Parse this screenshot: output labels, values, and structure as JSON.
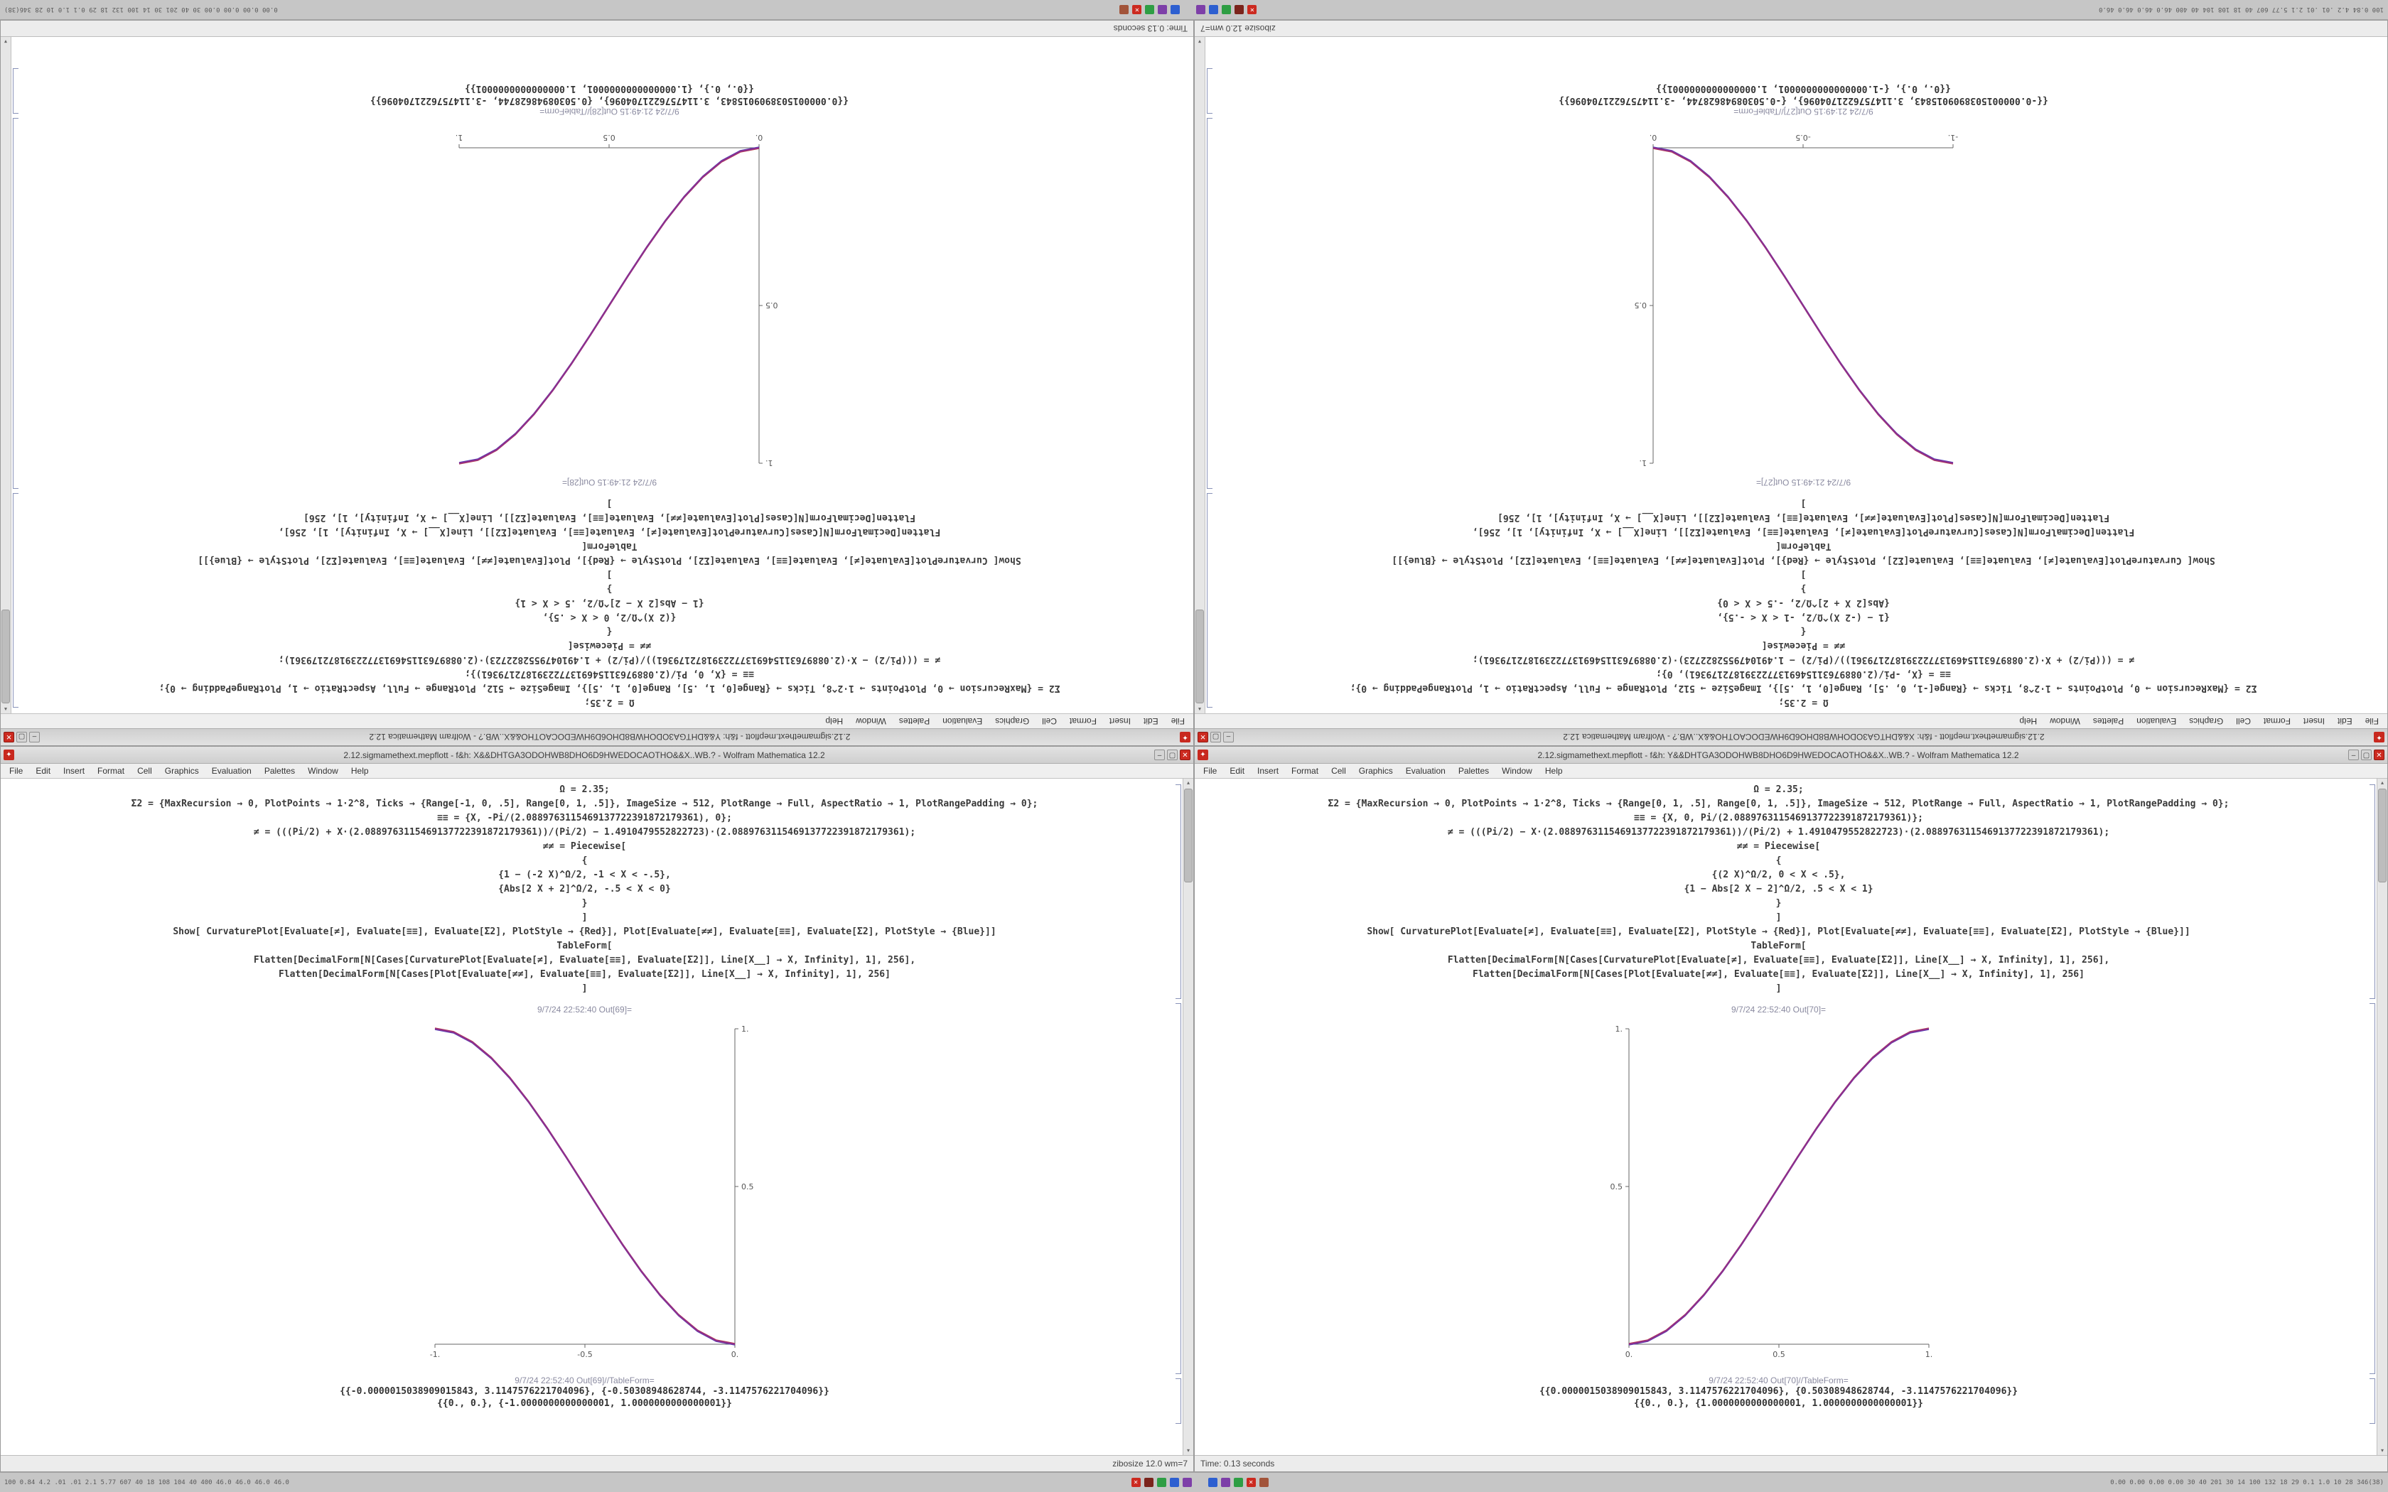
{
  "chrome": {
    "menu": [
      "File",
      "Edit",
      "Insert",
      "Format",
      "Cell",
      "Graphics",
      "Evaluation",
      "Palettes",
      "Window",
      "Help"
    ],
    "app_icon_glyph": "✦",
    "minimize_glyph": "–",
    "maximize_glyph": "▢",
    "close_glyph": "✕"
  },
  "taskbar": {
    "left_monitor": "100 0.84 4.2 .01 .01 2.1 5.77 607 40 18 108 104 40 400 46.0 46.0 46.0 46.0",
    "right_monitor": "0.00 0.00 0.00 0.00 30 40 201 30 14 100 132 18 29 0.1 1.0 10 28 346(38)",
    "icons": [
      {
        "name": "tray-icon-close-red",
        "color": "#cc2a20",
        "glyph": "✕"
      },
      {
        "name": "tray-icon-maroon",
        "color": "#7b241c",
        "glyph": ""
      },
      {
        "name": "tray-icon-green",
        "color": "#2e9e44",
        "glyph": ""
      },
      {
        "name": "tray-icon-blue",
        "color": "#2d5fd0",
        "glyph": ""
      },
      {
        "name": "tray-icon-purple",
        "color": "#7d3fa8",
        "glyph": ""
      },
      {
        "name": "tray-spacer",
        "color": "transparent",
        "glyph": ""
      },
      {
        "name": "tray-icon-blue-2",
        "color": "#2d5fd0",
        "glyph": ""
      },
      {
        "name": "tray-icon-purple-2",
        "color": "#7d3fa8",
        "glyph": ""
      },
      {
        "name": "tray-icon-green-2",
        "color": "#2e9e44",
        "glyph": ""
      },
      {
        "name": "tray-icon-red-2",
        "color": "#cc2a20",
        "glyph": "✕"
      },
      {
        "name": "tray-icon-brown",
        "color": "#a2543a",
        "glyph": ""
      }
    ]
  },
  "windows": {
    "br": {
      "title": "2.12.sigmamethext.mepflott - f&h: Y&&DHTGA3ODOHWB8DHO6D9HWEDOCAOTHO&&X..WB.? - Wolfram Mathematica 12.2",
      "status_left": "Time: 0.13 seconds",
      "status_right": "",
      "out_plot_label": "9/7/24 22:52:40 Out[70]=",
      "out_table_label": "9/7/24 22:52:40 Out[70]//TableForm=",
      "table_rows": [
        "{{0.0000015038909015843, 3.1147576221704096}, {0.50308948628744, -3.1147576221704096}}",
        "{{0., 0.}, {1.0000000000000001, 1.0000000000000001}}"
      ],
      "inputs": [
        "Ω = 2.35;",
        "Σ2 = {MaxRecursion → 0, PlotPoints → 1·2^8, Ticks → {Range[0, 1, .5], Range[0, 1, .5]}, ImageSize → 512, PlotRange → Full, AspectRatio → 1, PlotRangePadding → 0};",
        "≡≡ = {X, 0, Pi/(2.0889763115469137722391872179361)};",
        "≠ = (((Pi/2) − X·(2.0889763115469137722391872179361))/(Pi/2) + 1.4910479552822723)·(2.0889763115469137722391872179361);",
        "≠≠ = Piecewise[",
        "{",
        "{(2 X)^Ω/2, 0 < X < .5},",
        "{1 − Abs[2 X − 2]^Ω/2, .5 < X < 1}",
        "}",
        "]",
        "Show[ CurvaturePlot[Evaluate[≠], Evaluate[≡≡], Evaluate[Σ2], PlotStyle → {Red}], Plot[Evaluate[≠≠], Evaluate[≡≡], Evaluate[Σ2], PlotStyle → {Blue}]]",
        "TableForm[",
        "Flatten[DecimalForm[N[Cases[CurvaturePlot[Evaluate[≠], Evaluate[≡≡], Evaluate[Σ2]], Line[X__] → X, Infinity], 1], 256],",
        "Flatten[DecimalForm[N[Cases[Plot[Evaluate[≠≠], Evaluate[≡≡], Evaluate[Σ2]], Line[X__] → X, Infinity], 1], 256]",
        "]"
      ],
      "chart": {
        "type": "line",
        "x_range": [
          0,
          1
        ],
        "y_range": [
          0,
          1
        ],
        "x_ticks": [
          {
            "v": 0,
            "label": "0."
          },
          {
            "v": 0.5,
            "label": "0.5"
          },
          {
            "v": 1,
            "label": "1."
          }
        ],
        "y_ticks": [
          {
            "v": 0.5,
            "label": "0.5"
          },
          {
            "v": 1,
            "label": "1."
          }
        ],
        "x": [
          0,
          0.0625,
          0.125,
          0.1875,
          0.25,
          0.3125,
          0.375,
          0.4375,
          0.5,
          0.5625,
          0.625,
          0.6875,
          0.75,
          0.8125,
          0.875,
          0.9375,
          1
        ],
        "y": [
          0,
          0.0112,
          0.043,
          0.0923,
          0.1563,
          0.2319,
          0.3164,
          0.4067,
          0.5,
          0.5933,
          0.6836,
          0.7681,
          0.8438,
          0.9077,
          0.957,
          0.9888,
          1
        ],
        "purple": "#8d2f8d",
        "red": "#c24040",
        "blue": "#4040c2"
      }
    },
    "bl": {
      "title": "2.12.sigmamethext.mepflott - f&h: X&&DHTGA3ODOHWB8DHO6D9HWEDOCAOTHO&&X..WB.? - Wolfram Mathematica 12.2",
      "status_left": "",
      "status_right": "zibosize 12.0 wm=7",
      "out_plot_label": "9/7/24 22:52:40 Out[69]=",
      "out_table_label": "9/7/24 22:52:40 Out[69]//TableForm=",
      "table_rows": [
        "{{-0.0000015038909015843, 3.1147576221704096}, {-0.50308948628744, -3.1147576221704096}}",
        "{{0., 0.}, {-1.0000000000000001, 1.0000000000000001}}"
      ],
      "inputs": [
        "Ω = 2.35;",
        "Σ2 = {MaxRecursion → 0, PlotPoints → 1·2^8, Ticks → {Range[-1, 0, .5], Range[0, 1, .5]}, ImageSize → 512, PlotRange → Full, AspectRatio → 1, PlotRangePadding → 0};",
        "≡≡ = {X, -Pi/(2.0889763115469137722391872179361), 0};",
        "≠ = (((Pi/2) + X·(2.0889763115469137722391872179361))/(Pi/2) − 1.4910479552822723)·(2.0889763115469137722391872179361);",
        "≠≠ = Piecewise[",
        "{",
        "{1 − (-2 X)^Ω/2, -1 < X < -.5},",
        "{Abs[2 X + 2]^Ω/2, -.5 < X < 0}",
        "}",
        "]",
        "Show[ CurvaturePlot[Evaluate[≠], Evaluate[≡≡], Evaluate[Σ2], PlotStyle → {Red}], Plot[Evaluate[≠≠], Evaluate[≡≡], Evaluate[Σ2], PlotStyle → {Blue}]]",
        "TableForm[",
        "Flatten[DecimalForm[N[Cases[CurvaturePlot[Evaluate[≠], Evaluate[≡≡], Evaluate[Σ2]], Line[X__] → X, Infinity], 1], 256],",
        "Flatten[DecimalForm[N[Cases[Plot[Evaluate[≠≠], Evaluate[≡≡], Evaluate[Σ2]], Line[X__] → X, Infinity], 1], 256]",
        "]"
      ],
      "chart": {
        "type": "line",
        "x_range": [
          -1,
          0
        ],
        "y_range": [
          0,
          1
        ],
        "x_ticks": [
          {
            "v": -1,
            "label": "-1."
          },
          {
            "v": -0.5,
            "label": "-0.5"
          },
          {
            "v": 0,
            "label": "0."
          }
        ],
        "y_ticks": [
          {
            "v": 0.5,
            "label": "0.5"
          },
          {
            "v": 1,
            "label": "1."
          }
        ],
        "x": [
          -1,
          -0.9375,
          -0.875,
          -0.8125,
          -0.75,
          -0.6875,
          -0.625,
          -0.5625,
          -0.5,
          -0.4375,
          -0.375,
          -0.3125,
          -0.25,
          -0.1875,
          -0.125,
          -0.0625,
          0
        ],
        "y": [
          1,
          0.9888,
          0.957,
          0.9077,
          0.8438,
          0.7681,
          0.6836,
          0.5933,
          0.5,
          0.4067,
          0.3164,
          0.2319,
          0.1563,
          0.0923,
          0.043,
          0.0112,
          0
        ],
        "purple": "#8d2f8d",
        "red": "#c24040",
        "blue": "#4040c2"
      }
    },
    "tl": {
      "title": "2.12.sigmamethext.mepflott - f&h: Y&&DHTGA3ODOHWB8DHO6D9HWEDOCAOTHO&&X..WB.? - Wolfram Mathematica 12.2",
      "status_left": "Time: 0.13 seconds",
      "status_right": "",
      "out_plot_label": "9/7/24 21:49:15 Out[28]=",
      "out_table_label": "9/7/24 21:49:15 Out[28]//TableForm=",
      "table_rows": [
        "{{0.0000015038909015843, 3.1147576221704096}, {0.50308948628744, -3.1147576221704096}}",
        "{{0., 0.}, {1.0000000000000001, 1.0000000000000001}}"
      ],
      "inputs": [
        "Ω = 2.35;",
        "Σ2 = {MaxRecursion → 0, PlotPoints → 1·2^8, Ticks → {Range[0, 1, .5], Range[0, 1, .5]}, ImageSize → 512, PlotRange → Full, AspectRatio → 1, PlotRangePadding → 0};",
        "≡≡ = {X, 0, Pi/(2.0889763115469137722391872179361)};",
        "≠ = (((Pi/2) − X·(2.0889763115469137722391872179361))/(Pi/2) + 1.4910479552822723)·(2.0889763115469137722391872179361);",
        "≠≠ = Piecewise[",
        "{",
        "{(2 X)^Ω/2, 0 < X < .5},",
        "{1 − Abs[2 X − 2]^Ω/2, .5 < X < 1}",
        "}",
        "]",
        "Show[ CurvaturePlot[Evaluate[≠], Evaluate[≡≡], Evaluate[Σ2], PlotStyle → {Red}], Plot[Evaluate[≠≠], Evaluate[≡≡], Evaluate[Σ2], PlotStyle → {Blue}]]",
        "TableForm[",
        "Flatten[DecimalForm[N[Cases[CurvaturePlot[Evaluate[≠], Evaluate[≡≡], Evaluate[Σ2]], Line[X__] → X, Infinity], 1], 256],",
        "Flatten[DecimalForm[N[Cases[Plot[Evaluate[≠≠], Evaluate[≡≡], Evaluate[Σ2]], Line[X__] → X, Infinity], 1], 256]",
        "]"
      ],
      "chart": {
        "type": "line",
        "x_range": [
          0,
          1
        ],
        "y_range": [
          0,
          1
        ],
        "x_ticks": [
          {
            "v": 0,
            "label": "0."
          },
          {
            "v": 0.5,
            "label": "0.5"
          },
          {
            "v": 1,
            "label": "1."
          }
        ],
        "y_ticks": [
          {
            "v": 0.5,
            "label": "0.5"
          },
          {
            "v": 1,
            "label": "1."
          }
        ],
        "x": [
          0,
          0.0625,
          0.125,
          0.1875,
          0.25,
          0.3125,
          0.375,
          0.4375,
          0.5,
          0.5625,
          0.625,
          0.6875,
          0.75,
          0.8125,
          0.875,
          0.9375,
          1
        ],
        "y": [
          0,
          0.0112,
          0.043,
          0.0923,
          0.1563,
          0.2319,
          0.3164,
          0.4067,
          0.5,
          0.5933,
          0.6836,
          0.7681,
          0.8438,
          0.9077,
          0.957,
          0.9888,
          1
        ],
        "purple": "#8d2f8d",
        "red": "#c24040",
        "blue": "#4040c2"
      }
    },
    "tr": {
      "title": "2.12.sigmamethext.mepflott - f&h: X&&DHTGA3ODOHWB8DHO6D9HWEDOCAOTHO&&X..WB.? - Wolfram Mathematica 12.2",
      "status_left": "",
      "status_right": "zibosize 12.0 wm=7",
      "out_plot_label": "9/7/24 21:49:15 Out[27]=",
      "out_table_label": "9/7/24 21:49:15 Out[27]//TableForm=",
      "table_rows": [
        "{{-0.0000015038909015843, 3.1147576221704096}, {-0.50308948628744, -3.1147576221704096}}",
        "{{0., 0.}, {-1.0000000000000001, 1.0000000000000001}}"
      ],
      "inputs": [
        "Ω = 2.35;",
        "Σ2 = {MaxRecursion → 0, PlotPoints → 1·2^8, Ticks → {Range[-1, 0, .5], Range[0, 1, .5]}, ImageSize → 512, PlotRange → Full, AspectRatio → 1, PlotRangePadding → 0};",
        "≡≡ = {X, -Pi/(2.0889763115469137722391872179361), 0};",
        "≠ = (((Pi/2) + X·(2.0889763115469137722391872179361))/(Pi/2) − 1.4910479552822723)·(2.0889763115469137722391872179361);",
        "≠≠ = Piecewise[",
        "{",
        "{1 − (-2 X)^Ω/2, -1 < X < -.5},",
        "{Abs[2 X + 2]^Ω/2, -.5 < X < 0}",
        "}",
        "]",
        "Show[ CurvaturePlot[Evaluate[≠], Evaluate[≡≡], Evaluate[Σ2], PlotStyle → {Red}], Plot[Evaluate[≠≠], Evaluate[≡≡], Evaluate[Σ2], PlotStyle → {Blue}]]",
        "TableForm[",
        "Flatten[DecimalForm[N[Cases[CurvaturePlot[Evaluate[≠], Evaluate[≡≡], Evaluate[Σ2]], Line[X__] → X, Infinity], 1], 256],",
        "Flatten[DecimalForm[N[Cases[Plot[Evaluate[≠≠], Evaluate[≡≡], Evaluate[Σ2]], Line[X__] → X, Infinity], 1], 256]",
        "]"
      ],
      "chart": {
        "type": "line",
        "x_range": [
          -1,
          0
        ],
        "y_range": [
          0,
          1
        ],
        "x_ticks": [
          {
            "v": -1,
            "label": "-1."
          },
          {
            "v": -0.5,
            "label": "-0.5"
          },
          {
            "v": 0,
            "label": "0."
          }
        ],
        "y_ticks": [
          {
            "v": 0.5,
            "label": "0.5"
          },
          {
            "v": 1,
            "label": "1."
          }
        ],
        "x": [
          -1,
          -0.9375,
          -0.875,
          -0.8125,
          -0.75,
          -0.6875,
          -0.625,
          -0.5625,
          -0.5,
          -0.4375,
          -0.375,
          -0.3125,
          -0.25,
          -0.1875,
          -0.125,
          -0.0625,
          0
        ],
        "y": [
          1,
          0.9888,
          0.957,
          0.9077,
          0.8438,
          0.7681,
          0.6836,
          0.5933,
          0.5,
          0.4067,
          0.3164,
          0.2319,
          0.1563,
          0.0923,
          0.043,
          0.0112,
          0
        ],
        "purple": "#8d2f8d",
        "red": "#c24040",
        "blue": "#4040c2"
      }
    }
  }
}
